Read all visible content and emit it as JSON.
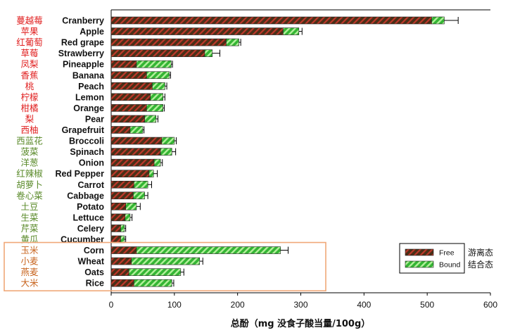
{
  "chart_data": {
    "type": "bar",
    "orientation": "horizontal",
    "stacked": true,
    "categories": [
      "Cranberry",
      "Apple",
      "Red grape",
      "Strawberry",
      "Pineapple",
      "Banana",
      "Peach",
      "Lemon",
      "Orange",
      "Pear",
      "Grapefruit",
      "Broccoli",
      "Spinach",
      "Onion",
      "Red Pepper",
      "Carrot",
      "Cabbage",
      "Potato",
      "Lettuce",
      "Celery",
      "Cucumber",
      "Corn",
      "Wheat",
      "Oats",
      "Rice"
    ],
    "categories_zh": [
      "蔓越莓",
      "苹果",
      "红葡萄",
      "草莓",
      "凤梨",
      "香蕉",
      "桃",
      "柠檬",
      "柑橘",
      "梨",
      "西柚",
      "西蓝花",
      "菠菜",
      "洋葱",
      "红辣椒",
      "胡萝卜",
      "卷心菜",
      "土豆",
      "生菜",
      "芹菜",
      "黄瓜",
      "玉米",
      "小麦",
      "燕麦",
      "大米"
    ],
    "category_groups": [
      "fruit",
      "fruit",
      "fruit",
      "fruit",
      "fruit",
      "fruit",
      "fruit",
      "fruit",
      "fruit",
      "fruit",
      "fruit",
      "vegetable",
      "vegetable",
      "vegetable",
      "vegetable",
      "vegetable",
      "vegetable",
      "vegetable",
      "vegetable",
      "vegetable",
      "vegetable",
      "grain",
      "grain",
      "grain",
      "grain"
    ],
    "group_colors": {
      "fruit": "#e02020",
      "vegetable": "#5a8a2a",
      "grain": "#c8641e"
    },
    "series": [
      {
        "name": "Free",
        "name_zh": "游离态",
        "color": "#5a3a1e",
        "stripe_color": "#c0392b",
        "values": [
          507,
          272,
          182,
          148,
          40,
          56,
          65,
          62,
          56,
          53,
          30,
          80,
          78,
          68,
          60,
          36,
          35,
          23,
          22,
          15,
          15,
          40,
          32,
          28,
          36
        ]
      },
      {
        "name": "Bound",
        "name_zh": "结合态",
        "color": "#3fbf3f",
        "stripe_color": "#a8ec90",
        "values": [
          20,
          25,
          20,
          12,
          55,
          36,
          20,
          20,
          26,
          18,
          20,
          20,
          18,
          10,
          7,
          22,
          18,
          17,
          8,
          6,
          6,
          228,
          108,
          82,
          60
        ]
      }
    ],
    "error": [
      22,
      5,
      3,
      12,
      2,
      2,
      3,
      3,
      2,
      3,
      2,
      3,
      6,
      3,
      6,
      6,
      5,
      6,
      3,
      2,
      2,
      12,
      5,
      5,
      3
    ],
    "xlabel": "总酚（mg 没食子酸当量/100g）",
    "xlim": [
      0,
      600
    ],
    "xticks": [
      0,
      100,
      200,
      300,
      400,
      500,
      600
    ],
    "legend_position": "lower-right",
    "highlight_box": [
      "Corn",
      "Wheat",
      "Oats",
      "Rice"
    ],
    "highlight_color": "#f0a878",
    "grid": false
  }
}
